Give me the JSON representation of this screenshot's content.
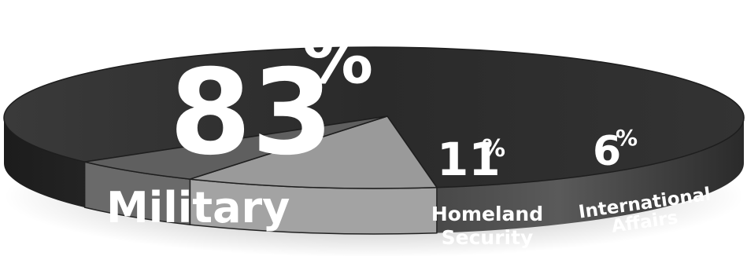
{
  "chart_data": {
    "type": "pie",
    "title": "",
    "slices": [
      {
        "name": "Military",
        "value": 83,
        "value_label": "83",
        "unit": "%",
        "color": "#2c2c2c"
      },
      {
        "name": "Homeland Security",
        "name_lines": [
          "Homeland",
          "Security"
        ],
        "value": 11,
        "value_label": "11",
        "unit": "%",
        "color": "#9a9a9a"
      },
      {
        "name": "International Affairs",
        "name_lines": [
          "International",
          "Affairs"
        ],
        "value": 6,
        "value_label": "6",
        "unit": "%",
        "color": "#5f5f5f"
      }
    ],
    "legend": "none"
  }
}
